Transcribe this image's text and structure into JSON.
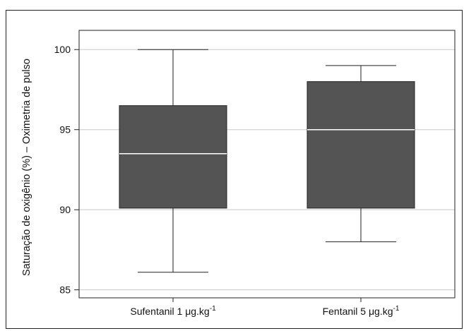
{
  "chart_data": {
    "type": "box",
    "title": "",
    "xlabel": "",
    "ylabel": "Saturação de oxigênio (%) – Oximetria de pulso",
    "ylim": [
      84.5,
      101.2
    ],
    "yticks": [
      85,
      90,
      95,
      100
    ],
    "grid": "horizontal",
    "box_color": "#545454",
    "median_color": "#ffffff",
    "categories": [
      {
        "base": "Sufentanil 1 μg.kg",
        "sup": "-1"
      },
      {
        "base": "Fentanil 5 μg.kg",
        "sup": "-1"
      }
    ],
    "boxes": [
      {
        "whisker_low": 86.1,
        "q1": 90.1,
        "median": 93.5,
        "q3": 96.5,
        "whisker_high": 100
      },
      {
        "whisker_low": 88.0,
        "q1": 90.1,
        "median": 95.0,
        "q3": 98.0,
        "whisker_high": 99.0
      }
    ]
  }
}
